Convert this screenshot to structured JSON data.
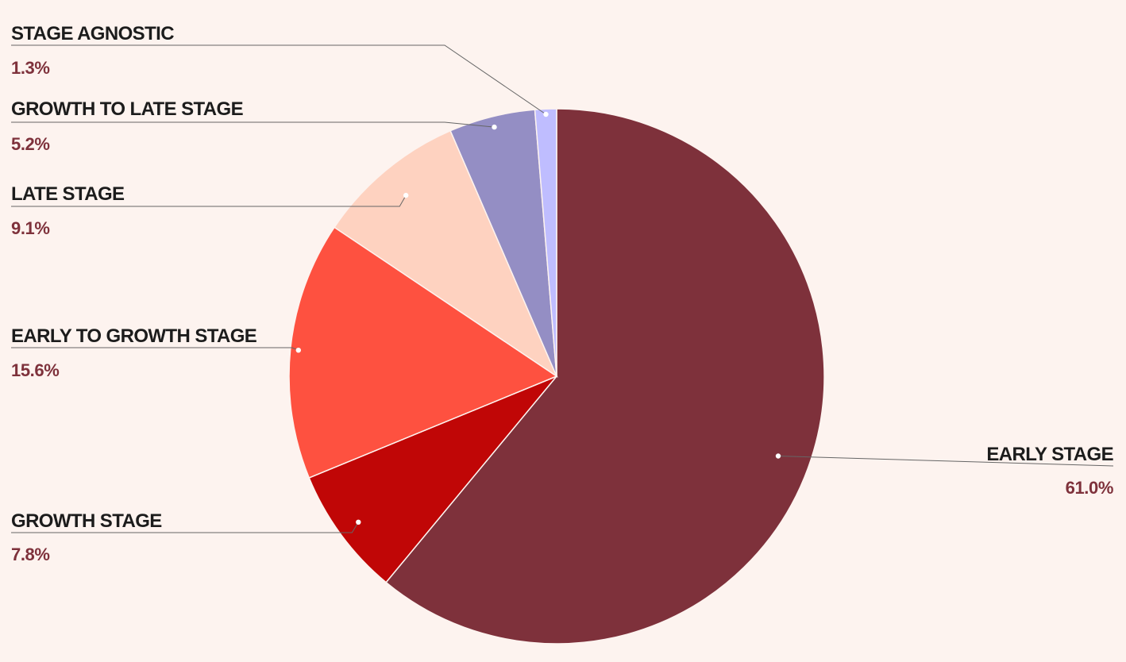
{
  "chart_data": {
    "type": "pie",
    "start": "12 o'clock",
    "direction": "clockwise",
    "slices": [
      {
        "label": "EARLY STAGE",
        "value": 61.0,
        "display": "61.0%",
        "color": "#7e313b"
      },
      {
        "label": "GROWTH STAGE",
        "value": 7.8,
        "display": "7.8%",
        "color": "#c00606"
      },
      {
        "label": "EARLY TO GROWTH STAGE",
        "value": 15.6,
        "display": "15.6%",
        "color": "#fe5140"
      },
      {
        "label": "LATE STAGE",
        "value": 9.1,
        "display": "9.1%",
        "color": "#fed2c0"
      },
      {
        "label": "GROWTH TO LATE STAGE",
        "value": 5.2,
        "display": "5.2%",
        "color": "#948ec4"
      },
      {
        "label": "STAGE AGNOSTIC",
        "value": 1.3,
        "display": "1.3%",
        "color": "#bfbdff"
      }
    ]
  },
  "colors": {
    "background": "#fdf3ef",
    "label_text": "#1c1c1c",
    "value_text": "#7e313b",
    "leader_line": "#666666"
  }
}
